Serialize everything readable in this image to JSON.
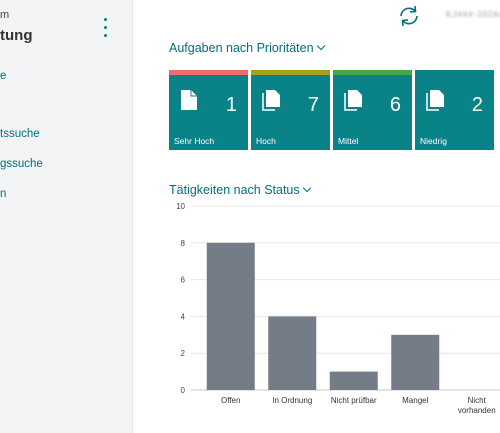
{
  "sidebar": {
    "header_line1": "m",
    "header_line2": "tung",
    "items": [
      {
        "label": "e"
      },
      {
        "label": "tssuche"
      },
      {
        "label": "gssuche"
      },
      {
        "label": "n"
      }
    ]
  },
  "header": {
    "user": "KJ###-2026###"
  },
  "tasks": {
    "title": "Aufgaben nach Prioritäten",
    "tiles": [
      {
        "label": "Sehr Hoch",
        "count": "1",
        "bar_color": "#e8716a"
      },
      {
        "label": "Hoch",
        "count": "7",
        "bar_color": "#a8a01c"
      },
      {
        "label": "Mittel",
        "count": "6",
        "bar_color": "#4aa544"
      },
      {
        "label": "Niedrig",
        "count": "2",
        "bar_color": "#0a8388"
      }
    ]
  },
  "activities": {
    "title": "Tätigkeiten nach Status"
  },
  "chart_data": {
    "type": "bar",
    "categories": [
      "Offen",
      "In Ordnung",
      "Nicht prüfbar",
      "Mangel",
      "Nicht vorhanden"
    ],
    "category_lines": [
      [
        "Offen"
      ],
      [
        "In Ordnung"
      ],
      [
        "Nicht prüfbar"
      ],
      [
        "Mangel"
      ],
      [
        "Nicht",
        "vorhanden"
      ]
    ],
    "values": [
      8,
      4,
      1,
      3,
      0
    ],
    "yticks": [
      0,
      2,
      4,
      6,
      8,
      10
    ],
    "ylim": [
      0,
      10
    ],
    "bar_color": "#747d87",
    "grid": true,
    "title": "",
    "xlabel": "",
    "ylabel": ""
  }
}
